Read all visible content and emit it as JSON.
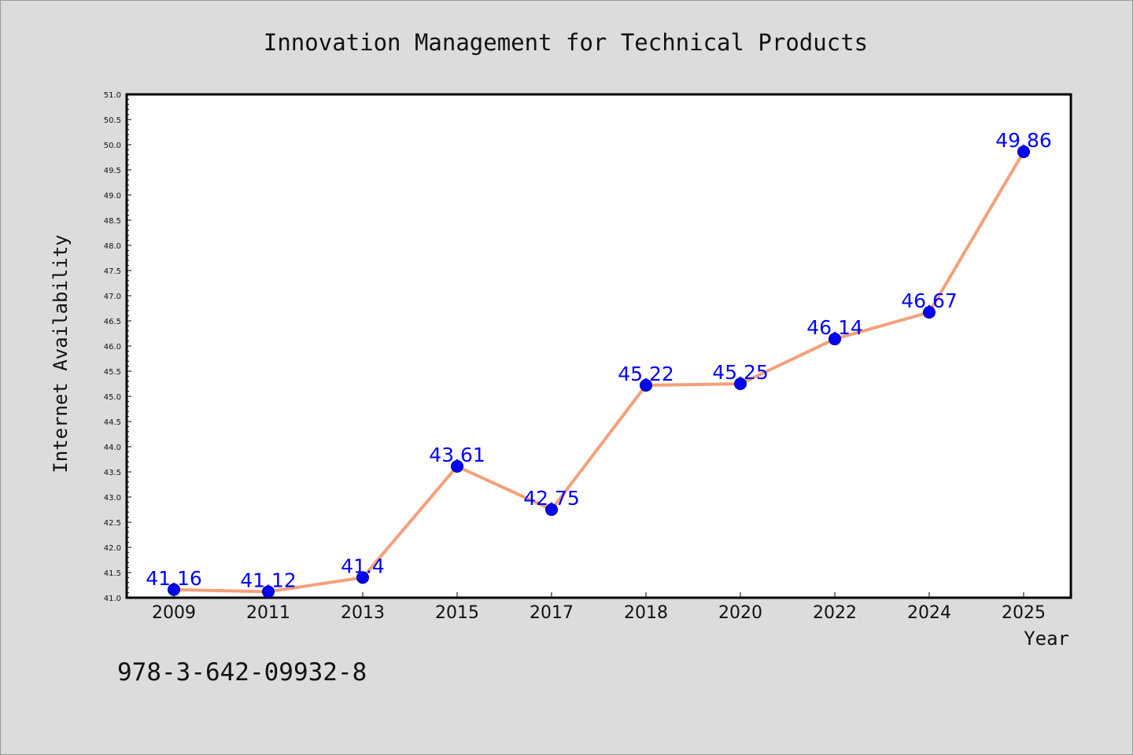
{
  "chart_data": {
    "type": "line",
    "title": "Innovation Management for Technical Products",
    "xlabel": "Year",
    "ylabel": "Internet Availability",
    "categories": [
      "2009",
      "2011",
      "2013",
      "2015",
      "2017",
      "2018",
      "2020",
      "2022",
      "2024",
      "2025"
    ],
    "series": [
      {
        "values": [
          41.16,
          41.12,
          41.4,
          43.61,
          42.75,
          45.22,
          45.25,
          46.14,
          46.67,
          49.86
        ],
        "data_labels": [
          "41.16",
          "41.12",
          "41.4",
          "43.61",
          "42.75",
          "45.22",
          "45.25",
          "46.14",
          "46.67",
          "49.86"
        ]
      }
    ],
    "ylim": [
      41.0,
      51.0
    ],
    "yticks": [
      "41.0",
      "41.5",
      "42.0",
      "42.5",
      "43.0",
      "43.5",
      "44.0",
      "44.5",
      "45.0",
      "45.5",
      "46.0",
      "46.5",
      "47.0",
      "47.5",
      "48.0",
      "48.5",
      "49.0",
      "49.5",
      "50.0",
      "50.5",
      "51.0"
    ],
    "grid": false,
    "legend": "none",
    "colors": {
      "line": "#f4a07a",
      "marker": "#0000ff",
      "marker_edge": "#00008b",
      "data_label": "#0000ff",
      "plot_bg": "#ffffff",
      "figure_bg": "#dcdcdc"
    }
  },
  "footnote": "978-3-642-09932-8"
}
